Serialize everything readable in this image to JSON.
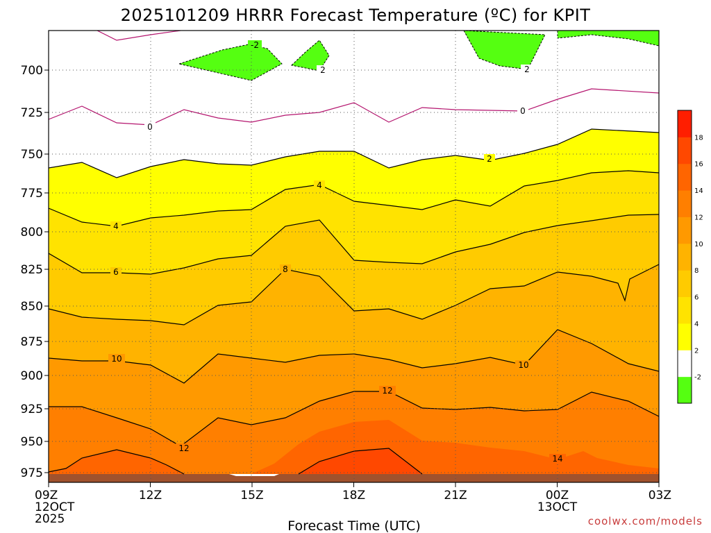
{
  "chart_data": {
    "type": "contour",
    "title": "2025101209 HRRR Forecast Temperature (ºC) for KPIT",
    "xlabel": "Forecast Time (UTC)",
    "ylabel": "",
    "x_ticks": [
      {
        "hour": 0,
        "lines": [
          "09Z",
          "12OCT",
          "2025"
        ]
      },
      {
        "hour": 3,
        "lines": [
          "12Z"
        ]
      },
      {
        "hour": 6,
        "lines": [
          "15Z"
        ]
      },
      {
        "hour": 9,
        "lines": [
          "18Z"
        ]
      },
      {
        "hour": 12,
        "lines": [
          "21Z"
        ]
      },
      {
        "hour": 15,
        "lines": [
          "00Z",
          "13OCT"
        ]
      },
      {
        "hour": 18,
        "lines": [
          "03Z"
        ]
      }
    ],
    "xlim": [
      0,
      18
    ],
    "y_ticks": [
      700,
      725,
      750,
      775,
      800,
      825,
      850,
      875,
      900,
      925,
      950,
      975
    ],
    "ylim": [
      680,
      978
    ],
    "y_axis": "pressure (hPa), increasing downward",
    "colorbar": {
      "ticks": [
        -2,
        2,
        4,
        6,
        8,
        10,
        12,
        14,
        16,
        18
      ],
      "colors": [
        "#55ff11",
        "#ffffff",
        "#ffff00",
        "#ffe300",
        "#ffcb00",
        "#ffb300",
        "#ff9900",
        "#ff7f00",
        "#ff6500",
        "#ff4800",
        "#ff1e00"
      ]
    },
    "ground_color": "#a0522d",
    "credit": "coolwx.com/models"
  }
}
